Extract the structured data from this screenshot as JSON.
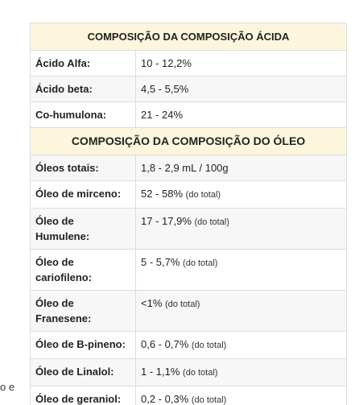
{
  "left_fragment": "o e",
  "table": {
    "acid_header": "COMPOSIÇÃO DA COMPOSIÇÃO ÁCIDA",
    "acid_rows": [
      {
        "label": "Ácido Alfa:",
        "value": "10 - 12,2%",
        "note": ""
      },
      {
        "label": "Ácido beta:",
        "value": "4,5 - 5,5%",
        "note": ""
      },
      {
        "label": "Co-humulona:",
        "value": "21 - 24%",
        "note": ""
      }
    ],
    "oil_header": "COMPOSIÇÃO DA COMPOSIÇÃO DO ÓLEO",
    "oil_rows": [
      {
        "label": "Óleos totais:",
        "value": "1,8 - 2,9 mL / 100g",
        "note": ""
      },
      {
        "label": "Óleo de mirceno:",
        "value": "52 - 58%",
        "note": "(do total)"
      },
      {
        "label": "Óleo de Humulene:",
        "value": "17 - 17,9%",
        "note": "(do total)"
      },
      {
        "label": "Óleo de cariofileno:",
        "value": "5 - 5,7%",
        "note": "(do total)"
      },
      {
        "label": "Óleo de Franesene:",
        "value": "<1%",
        "note": "(do total)"
      },
      {
        "label": "Óleo de B-pineno:",
        "value": "0,6 - 0,7%",
        "note": "(do total)"
      },
      {
        "label": "Óleo de Linalol:",
        "value": "1 - 1,1%",
        "note": "(do total)"
      },
      {
        "label": "Óleo de geraniol:",
        "value": "0,2 - 0,3%",
        "note": "(do total)"
      }
    ]
  }
}
